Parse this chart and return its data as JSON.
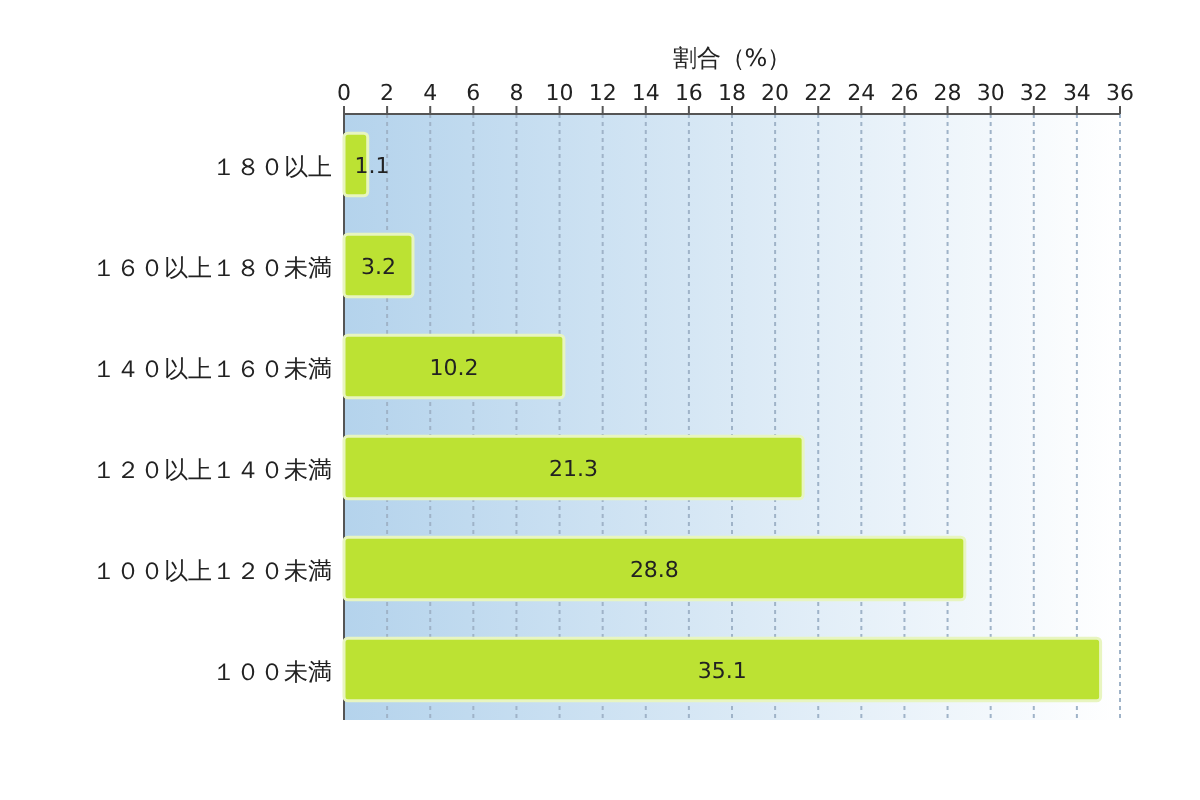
{
  "chart_data": {
    "type": "bar",
    "orientation": "horizontal",
    "xlabel": "割合（%）",
    "categories": [
      "１８０以上",
      "１６０以上１８０未満",
      "１４０以上１６０未満",
      "１２０以上１４０未満",
      "１００以上１２０未満",
      "１００未満"
    ],
    "values": [
      1.1,
      3.2,
      10.2,
      21.3,
      28.8,
      35.1
    ],
    "color": "#bce233",
    "xlim": [
      0,
      36
    ],
    "xticks": [
      0,
      2,
      4,
      6,
      8,
      10,
      12,
      14,
      16,
      18,
      20,
      22,
      24,
      26,
      28,
      30,
      32,
      34,
      36
    ],
    "grid": "x",
    "data_labels": true
  }
}
